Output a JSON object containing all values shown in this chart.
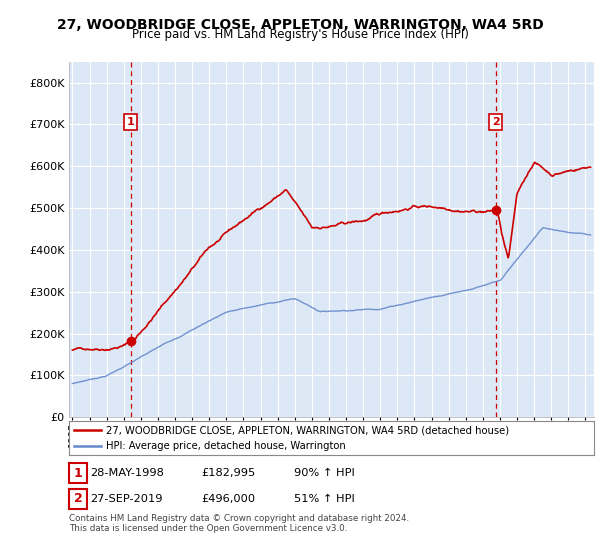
{
  "title": "27, WOODBRIDGE CLOSE, APPLETON, WARRINGTON, WA4 5RD",
  "subtitle": "Price paid vs. HM Land Registry's House Price Index (HPI)",
  "legend_label_red": "27, WOODBRIDGE CLOSE, APPLETON, WARRINGTON, WA4 5RD (detached house)",
  "legend_label_blue": "HPI: Average price, detached house, Warrington",
  "annotation1_date": "28-MAY-1998",
  "annotation1_price": "£182,995",
  "annotation1_hpi": "90% ↑ HPI",
  "annotation2_date": "27-SEP-2019",
  "annotation2_price": "£496,000",
  "annotation2_hpi": "51% ↑ HPI",
  "copyright_text": "Contains HM Land Registry data © Crown copyright and database right 2024.\nThis data is licensed under the Open Government Licence v3.0.",
  "red_color": "#cc0000",
  "blue_color": "#6688cc",
  "plot_bg_color": "#dce8f5",
  "fig_bg_color": "#ffffff",
  "grid_color": "#ffffff",
  "ylim": [
    0,
    850000
  ],
  "yticks": [
    0,
    100000,
    200000,
    300000,
    400000,
    500000,
    600000,
    700000,
    800000
  ],
  "sale1_x": 1998.41,
  "sale1_y": 182995,
  "sale2_x": 2019.75,
  "sale2_y": 496000,
  "xmin": 1994.8,
  "xmax": 2025.5
}
